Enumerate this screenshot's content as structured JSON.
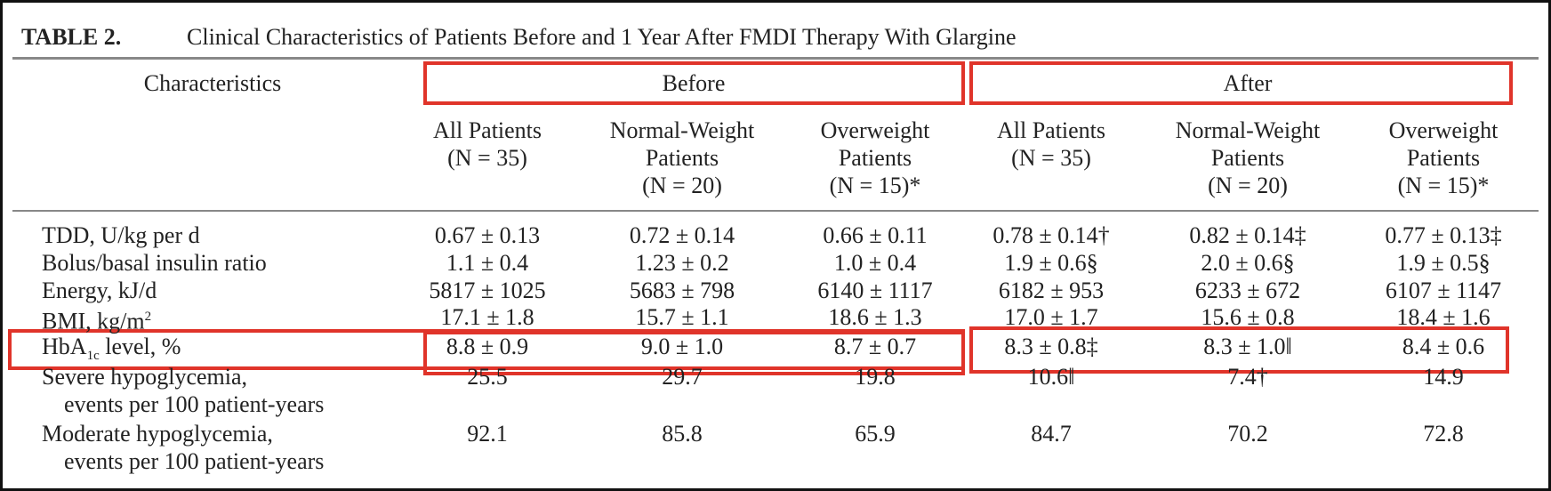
{
  "title": {
    "number": "TABLE 2.",
    "text": "Clinical Characteristics of Patients Before and 1 Year After FMDI Therapy With Glargine"
  },
  "table": {
    "header": {
      "characteristics": "Characteristics",
      "groups": [
        "Before",
        "After"
      ],
      "columns": [
        [
          "All Patients",
          "(N = 35)"
        ],
        [
          "Normal-Weight",
          "Patients",
          "(N = 20)"
        ],
        [
          "Overweight",
          "Patients",
          "(N = 15)*"
        ],
        [
          "All Patients",
          "(N = 35)"
        ],
        [
          "Normal-Weight",
          "Patients",
          "(N = 20)"
        ],
        [
          "Overweight",
          "Patients",
          "(N = 15)*"
        ]
      ]
    },
    "rows": [
      {
        "label": [
          "TDD, U/kg per d"
        ],
        "cells": [
          "0.67 ± 0.13",
          "0.72 ± 0.14",
          "0.66 ± 0.11",
          "0.78 ± 0.14†",
          "0.82 ± 0.14‡",
          "0.77 ± 0.13‡"
        ]
      },
      {
        "label": [
          "Bolus/basal insulin ratio"
        ],
        "cells": [
          "1.1 ± 0.4",
          "1.23 ± 0.2",
          "1.0 ± 0.4",
          "1.9 ± 0.6§",
          "2.0 ± 0.6§",
          "1.9 ± 0.5§"
        ]
      },
      {
        "label": [
          "Energy, kJ/d"
        ],
        "cells": [
          "5817 ± 1025",
          "5683 ± 798",
          "6140 ± 1117",
          "6182 ± 953",
          "6233 ± 672",
          "6107 ± 1147"
        ]
      },
      {
        "label": [
          [
            "BMI, kg/m",
            "2",
            ""
          ]
        ],
        "cells": [
          "17.1 ± 1.8",
          "15.7 ± 1.1",
          "18.6 ± 1.3",
          "17.0 ± 1.7",
          "15.6 ± 0.8",
          "18.4 ± 1.6"
        ]
      },
      {
        "label": [
          [
            "HbA",
            "1c",
            " level, %"
          ]
        ],
        "cells": [
          "8.8 ± 0.9",
          "9.0 ± 1.0",
          "8.7 ± 0.7",
          "8.3 ± 0.8‡",
          "8.3 ± 1.0‖",
          "8.4 ± 0.6"
        ]
      },
      {
        "label": [
          "Severe hypoglycemia,",
          "events per 100 patient-years"
        ],
        "cells": [
          "25.5",
          "29.7",
          "19.8",
          "10.6‖",
          "7.4†",
          "14.9"
        ]
      },
      {
        "label": [
          "Moderate hypoglycemia,",
          "events per 100 patient-years"
        ],
        "cells": [
          "92.1",
          "85.8",
          "65.9",
          "84.7",
          "70.2",
          "72.8"
        ]
      }
    ]
  }
}
